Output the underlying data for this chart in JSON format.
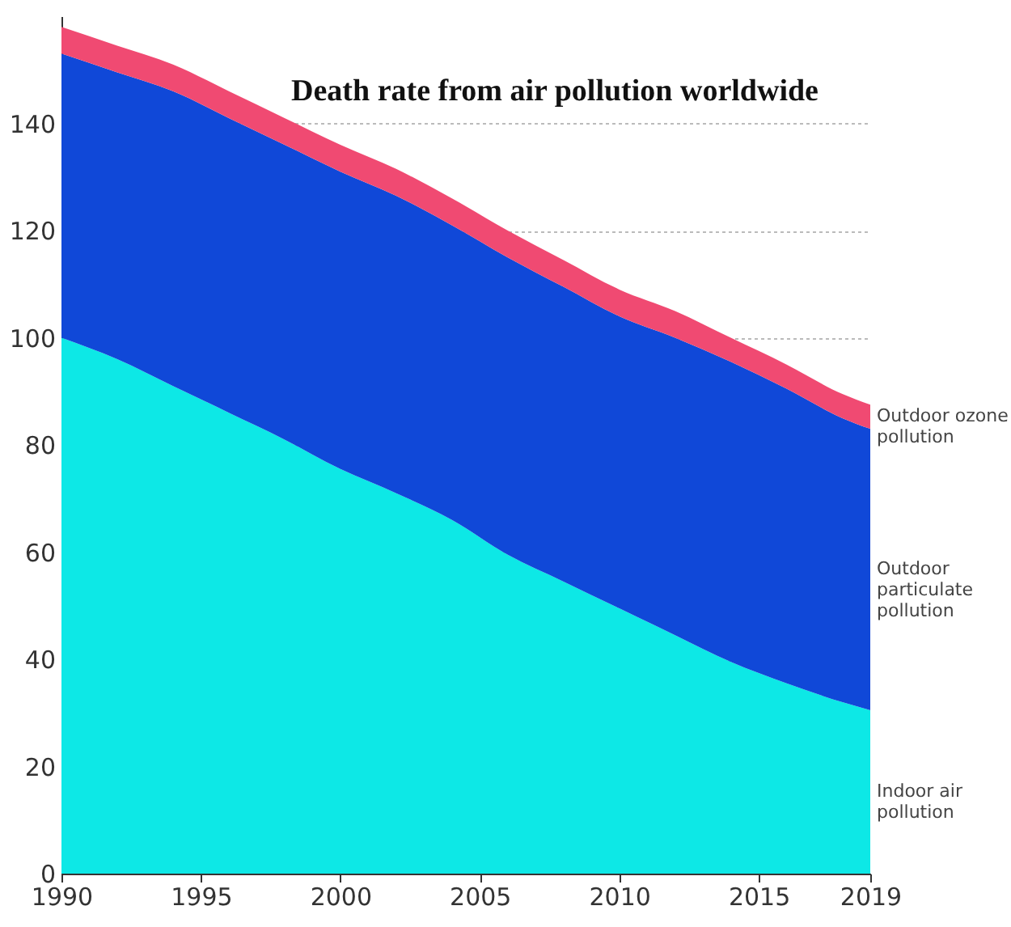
{
  "chart_data": {
    "type": "area",
    "stacked": true,
    "title": "Death rate from  air pollution  worldwide",
    "x": [
      1990,
      1992,
      1994,
      1996,
      1998,
      2000,
      2002,
      2004,
      2006,
      2008,
      2010,
      2012,
      2014,
      2016,
      2018,
      2019
    ],
    "series": [
      {
        "name": "Indoor air pollution",
        "color": "#0de8e6",
        "values": [
          100,
          96,
          91,
          86,
          81,
          75.5,
          71,
          66,
          59.5,
          54.5,
          49.5,
          44.5,
          39.5,
          35.5,
          32,
          30.5
        ]
      },
      {
        "name": "Outdoor particulate pollution",
        "color": "#1048d8",
        "values": [
          53,
          53.5,
          55,
          55,
          55,
          55.5,
          55.5,
          55,
          55.5,
          55,
          54.5,
          55.5,
          56,
          55,
          53,
          52.5
        ]
      },
      {
        "name": "Outdoor ozone pollution",
        "color": "#f04a72",
        "values": [
          5,
          5,
          5,
          5,
          5,
          5,
          5,
          5,
          5,
          5,
          5,
          5,
          4.5,
          4.5,
          4.5,
          4.5
        ]
      }
    ],
    "xlim": [
      1990,
      2019
    ],
    "xticks": [
      1990,
      1995,
      2000,
      2005,
      2010,
      2015,
      2019
    ],
    "ylim": [
      0,
      160
    ],
    "yticks": [
      0,
      20,
      40,
      60,
      80,
      100,
      120,
      140
    ],
    "grid": "y",
    "legend": false
  }
}
